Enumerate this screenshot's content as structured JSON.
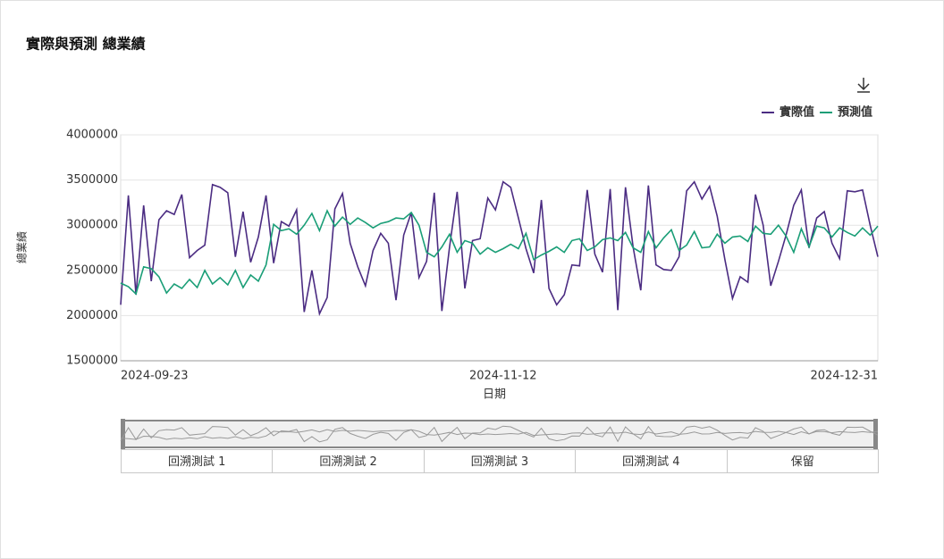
{
  "chart_data": {
    "type": "line",
    "title": "實際與預測 總業績",
    "x_label": "日期",
    "y_label": "總業績",
    "categories": [
      "2024-09-23",
      null,
      null,
      null,
      null,
      null,
      null,
      null,
      null,
      null,
      null,
      null,
      null,
      null,
      null,
      null,
      null,
      null,
      null,
      null,
      null,
      null,
      null,
      null,
      null,
      null,
      null,
      null,
      null,
      null,
      null,
      null,
      null,
      null,
      null,
      null,
      null,
      null,
      null,
      null,
      null,
      null,
      null,
      null,
      null,
      null,
      null,
      null,
      null,
      null,
      "2024-11-12",
      null,
      null,
      null,
      null,
      null,
      null,
      null,
      null,
      null,
      null,
      null,
      null,
      null,
      null,
      null,
      null,
      null,
      null,
      null,
      null,
      null,
      null,
      null,
      null,
      null,
      null,
      null,
      null,
      null,
      null,
      null,
      null,
      null,
      null,
      null,
      null,
      null,
      null,
      null,
      null,
      null,
      null,
      null,
      null,
      null,
      null,
      null,
      null,
      "2024-12-31"
    ],
    "series": [
      {
        "name": "實際值",
        "color": "#4b2c82",
        "values": [
          2120000,
          3330000,
          2230000,
          3220000,
          2380000,
          3060000,
          3160000,
          3120000,
          3340000,
          2640000,
          2720000,
          2780000,
          3450000,
          3420000,
          3360000,
          2650000,
          3150000,
          2590000,
          2870000,
          3330000,
          2580000,
          3040000,
          2990000,
          3170000,
          2040000,
          2500000,
          2020000,
          2200000,
          3180000,
          3350000,
          2800000,
          2540000,
          2330000,
          2720000,
          2910000,
          2800000,
          2170000,
          2890000,
          3140000,
          2420000,
          2600000,
          3360000,
          2050000,
          2760000,
          3370000,
          2300000,
          2830000,
          2850000,
          3300000,
          3170000,
          3480000,
          3420000,
          3080000,
          2740000,
          2470000,
          3280000,
          2300000,
          2120000,
          2230000,
          2560000,
          2550000,
          3390000,
          2680000,
          2480000,
          3400000,
          2060000,
          3420000,
          2760000,
          2280000,
          3440000,
          2560000,
          2510000,
          2500000,
          2650000,
          3380000,
          3480000,
          3290000,
          3430000,
          3100000,
          2620000,
          2190000,
          2430000,
          2370000,
          3340000,
          3000000,
          2330000,
          2600000,
          2890000,
          3220000,
          3390000,
          2750000,
          3080000,
          3150000,
          2800000,
          2630000,
          3380000,
          3370000,
          3390000,
          3000000,
          2650000
        ]
      },
      {
        "name": "預測值",
        "color": "#1a9e77",
        "values": [
          2360000,
          2320000,
          2240000,
          2540000,
          2520000,
          2430000,
          2250000,
          2350000,
          2300000,
          2400000,
          2310000,
          2500000,
          2350000,
          2420000,
          2340000,
          2500000,
          2310000,
          2450000,
          2380000,
          2560000,
          3010000,
          2940000,
          2960000,
          2900000,
          3000000,
          3130000,
          2940000,
          3160000,
          2990000,
          3090000,
          3010000,
          3080000,
          3030000,
          2970000,
          3020000,
          3040000,
          3080000,
          3070000,
          3140000,
          3000000,
          2700000,
          2650000,
          2760000,
          2900000,
          2700000,
          2830000,
          2800000,
          2680000,
          2750000,
          2700000,
          2740000,
          2790000,
          2740000,
          2910000,
          2620000,
          2670000,
          2710000,
          2760000,
          2700000,
          2830000,
          2850000,
          2720000,
          2760000,
          2840000,
          2860000,
          2830000,
          2920000,
          2750000,
          2700000,
          2930000,
          2750000,
          2860000,
          2950000,
          2720000,
          2780000,
          2930000,
          2750000,
          2760000,
          2900000,
          2800000,
          2870000,
          2880000,
          2820000,
          2990000,
          2910000,
          2900000,
          3000000,
          2880000,
          2700000,
          2960000,
          2760000,
          2990000,
          2970000,
          2870000,
          2970000,
          2920000,
          2880000,
          2970000,
          2890000,
          2990000
        ]
      }
    ],
    "ylim": [
      1500000,
      4000000
    ],
    "yticks": [
      1500000,
      2000000,
      2500000,
      3000000,
      3500000,
      4000000
    ],
    "grid": true,
    "legend": "top-right"
  },
  "range_buttons": [
    "回溯測試 1",
    "回溯測試 2",
    "回溯測試 3",
    "回溯測試 4",
    "保留"
  ]
}
